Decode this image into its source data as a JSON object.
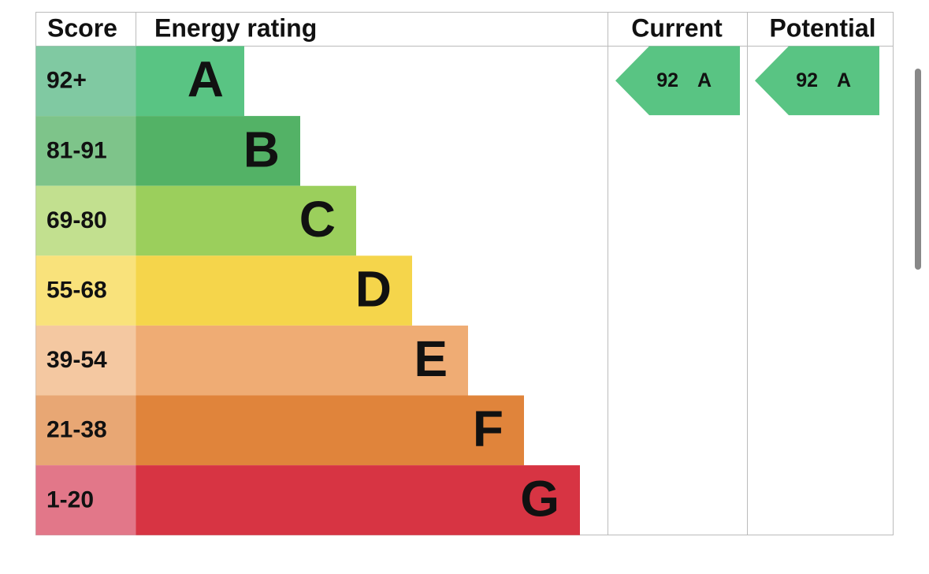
{
  "header": {
    "score": "Score",
    "rating": "Energy rating",
    "current": "Current",
    "potential": "Potential"
  },
  "bands": [
    {
      "score": "92+",
      "letter": "A",
      "color": "#59c483",
      "score_color": "#80c9a2"
    },
    {
      "score": "81-91",
      "letter": "B",
      "color": "#53b266",
      "score_color": "#7ec48a"
    },
    {
      "score": "69-80",
      "letter": "C",
      "color": "#9bcf5c",
      "score_color": "#c2e08f"
    },
    {
      "score": "55-68",
      "letter": "D",
      "color": "#f5d54b",
      "score_color": "#f9e27b"
    },
    {
      "score": "39-54",
      "letter": "E",
      "color": "#efac74",
      "score_color": "#f4c8a1"
    },
    {
      "score": "21-38",
      "letter": "F",
      "color": "#e0843b",
      "score_color": "#e8a774"
    },
    {
      "score": "1-20",
      "letter": "G",
      "color": "#d73443",
      "score_color": "#e27789"
    }
  ],
  "current": {
    "value": 92,
    "rating": "A",
    "color": "#59c483"
  },
  "potential": {
    "value": 92,
    "rating": "A",
    "color": "#59c483"
  }
}
